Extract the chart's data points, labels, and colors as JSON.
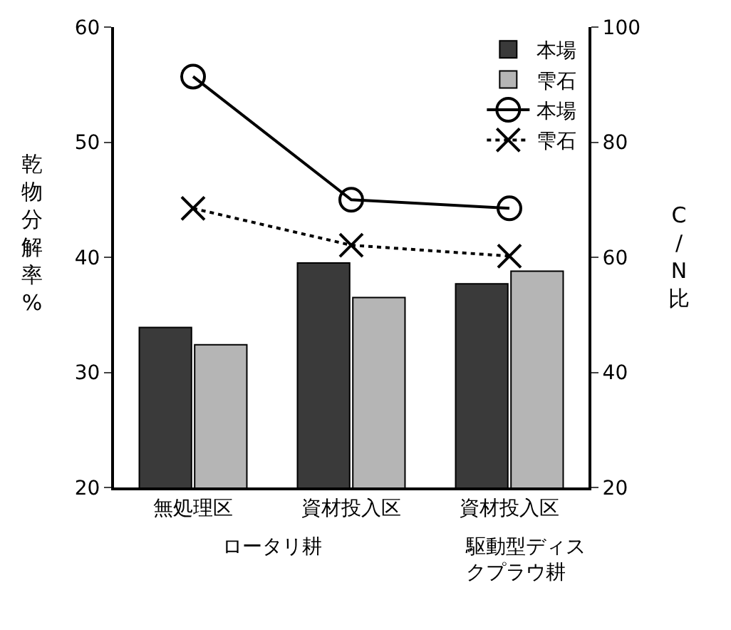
{
  "chart_data": {
    "type": "bar",
    "categories": [
      "無処理区",
      "資材投入区",
      "資材投入区"
    ],
    "ylabel": "乾物分解率%",
    "y2label": "C/N比",
    "ylim": [
      20,
      60
    ],
    "yticks": [
      20,
      30,
      40,
      50,
      60
    ],
    "y2lim": [
      20,
      100
    ],
    "y2ticks": [
      20,
      40,
      60,
      80,
      100
    ],
    "series": [
      {
        "name": "本場",
        "color": "#3a3a3a",
        "values": [
          33.9,
          39.5,
          37.7
        ]
      },
      {
        "name": "雫石",
        "color": "#b5b5b5",
        "values": [
          32.4,
          36.5,
          38.8
        ]
      },
      {
        "name": "本場",
        "type": "line",
        "axis": "y2",
        "color": "#000000",
        "marker": "circle",
        "line_style": "solid",
        "values": [
          91.4,
          70,
          68.5
        ]
      },
      {
        "name": "雫石",
        "type": "line",
        "axis": "y2",
        "color": "#000000",
        "marker": "cross",
        "line_style": "dotted",
        "values": [
          68.5,
          62.1,
          60.2
        ]
      }
    ],
    "annotations": [
      "ロータリ耕",
      "駆動型ディスクプラウ耕"
    ],
    "legend": "top right"
  }
}
